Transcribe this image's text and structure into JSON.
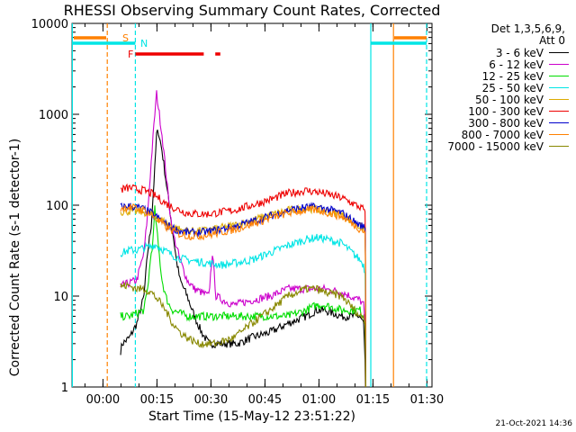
{
  "chart_data": {
    "type": "line",
    "title": "RHESSI Observing Summary Count Rates, Corrected",
    "xlabel": "Start Time (15-May-12 23:51:22)",
    "ylabel": "Corrected Count Rate (s-1 detector-1)",
    "y_scale": "log",
    "ylim": [
      1,
      10000
    ],
    "x_unit": "minutes after 23:51:22",
    "xlim": [
      0,
      100
    ],
    "x_ticks": [
      {
        "label": "00:00",
        "value": 8.6
      },
      {
        "label": "00:15",
        "value": 23.6
      },
      {
        "label": "00:30",
        "value": 38.6
      },
      {
        "label": "00:45",
        "value": 53.6
      },
      {
        "label": "01:00",
        "value": 68.6
      },
      {
        "label": "01:15",
        "value": 83.6
      },
      {
        "label": "01:30",
        "value": 98.6
      }
    ],
    "y_ticks": [
      {
        "label": "1",
        "value": 1
      },
      {
        "label": "10",
        "value": 10
      },
      {
        "label": "100",
        "value": 100
      },
      {
        "label": "1000",
        "value": 1000
      },
      {
        "label": "10000",
        "value": 10000
      }
    ],
    "legend_header": [
      "Det 1,3,5,6,9,",
      "Att 0"
    ],
    "legend_position": "right",
    "series": [
      {
        "name": "3 - 6 keV",
        "color": "#000000",
        "x": [
          13.5,
          14,
          16,
          18,
          20,
          21,
          22,
          23,
          23.5,
          24,
          25,
          26,
          27,
          28,
          29,
          30,
          32,
          34,
          36,
          38,
          40,
          43,
          46,
          50,
          55,
          60,
          65,
          68,
          70,
          75,
          80,
          81,
          81.4,
          81.6
        ],
        "y": [
          2.5,
          3,
          3.5,
          5,
          10,
          30,
          60,
          250,
          600,
          650,
          400,
          200,
          100,
          50,
          25,
          15,
          10,
          6,
          4,
          3,
          3,
          3,
          3,
          3.5,
          4,
          5,
          6,
          7,
          7,
          6,
          6,
          5,
          2,
          0
        ]
      },
      {
        "name": "6 - 12 keV",
        "color": "#cc00cc",
        "x": [
          13.5,
          14,
          16,
          18,
          20,
          21,
          22,
          23,
          23.5,
          24,
          25,
          26,
          27,
          28,
          30,
          32,
          34,
          36,
          38,
          39,
          40,
          42,
          45,
          50,
          55,
          60,
          65,
          68,
          70,
          75,
          80,
          81,
          81.4,
          81.6
        ],
        "y": [
          12,
          13,
          14,
          15,
          30,
          80,
          300,
          1000,
          1700,
          1200,
          600,
          250,
          100,
          50,
          25,
          15,
          12,
          11,
          10,
          30,
          10,
          9,
          8,
          9,
          10,
          12,
          12,
          12,
          12,
          11,
          9,
          8,
          5,
          0
        ]
      },
      {
        "name": "12 - 25 keV",
        "color": "#00dd00",
        "x": [
          13.5,
          14,
          16,
          18,
          20,
          21,
          22,
          22.5,
          23,
          24,
          25,
          26,
          27,
          28,
          30,
          32,
          35,
          40,
          45,
          50,
          55,
          60,
          65,
          68,
          70,
          75,
          80,
          81,
          81.4,
          81.6
        ],
        "y": [
          6,
          6,
          6,
          6.5,
          7,
          12,
          30,
          40,
          90,
          35,
          15,
          10,
          8,
          7,
          6.5,
          6,
          6,
          6,
          6,
          6,
          6,
          6,
          7,
          8,
          8,
          7,
          7,
          6,
          5,
          0
        ]
      },
      {
        "name": "25 - 50 keV",
        "color": "#00e5e5",
        "x": [
          13.5,
          14,
          16,
          18,
          20,
          22,
          23,
          25,
          28,
          30,
          32,
          35,
          38,
          42,
          45,
          50,
          55,
          60,
          65,
          68,
          70,
          75,
          80,
          81,
          81.4,
          81.6
        ],
        "y": [
          30,
          30,
          32,
          32,
          34,
          35,
          37,
          33,
          28,
          26,
          25,
          24,
          23,
          22,
          23,
          25,
          30,
          36,
          42,
          44,
          43,
          38,
          25,
          22,
          18,
          0
        ]
      },
      {
        "name": "50 - 100 keV",
        "color": "#ddaa00",
        "x": [
          13.5,
          14,
          16,
          18,
          20,
          22,
          24,
          26,
          28,
          30,
          32,
          35,
          38,
          40,
          45,
          50,
          55,
          60,
          65,
          68,
          70,
          75,
          80,
          81,
          81.4,
          81.6
        ],
        "y": [
          85,
          85,
          86,
          85,
          84,
          80,
          72,
          64,
          58,
          54,
          52,
          52,
          53,
          55,
          60,
          68,
          78,
          88,
          92,
          91,
          88,
          78,
          58,
          56,
          54,
          0
        ]
      },
      {
        "name": "100 - 300 keV",
        "color": "#ee0000",
        "x": [
          13.5,
          14,
          16,
          18,
          20,
          22,
          24,
          26,
          28,
          30,
          32,
          35,
          38,
          40,
          45,
          50,
          55,
          60,
          65,
          68,
          70,
          75,
          80,
          81,
          81.4,
          81.6
        ],
        "y": [
          150,
          150,
          155,
          150,
          145,
          135,
          120,
          105,
          95,
          88,
          82,
          80,
          80,
          82,
          88,
          100,
          115,
          135,
          145,
          140,
          135,
          120,
          95,
          90,
          85,
          0
        ]
      },
      {
        "name": "300 - 800 keV",
        "color": "#0000cc",
        "x": [
          13.5,
          14,
          16,
          18,
          20,
          22,
          24,
          26,
          28,
          30,
          32,
          35,
          38,
          40,
          45,
          50,
          55,
          60,
          65,
          68,
          70,
          75,
          80,
          81,
          81.4,
          81.6
        ],
        "y": [
          95,
          96,
          98,
          95,
          90,
          82,
          72,
          62,
          56,
          52,
          50,
          50,
          51,
          53,
          58,
          66,
          76,
          88,
          95,
          95,
          92,
          82,
          60,
          58,
          56,
          0
        ]
      },
      {
        "name": "800 - 7000 keV",
        "color": "#ff8000",
        "x": [
          13.5,
          14,
          16,
          18,
          20,
          22,
          24,
          26,
          28,
          30,
          32,
          35,
          38,
          40,
          45,
          50,
          55,
          60,
          65,
          68,
          70,
          75,
          80,
          81,
          81.4,
          81.6
        ],
        "y": [
          92,
          94,
          95,
          92,
          88,
          78,
          68,
          58,
          52,
          48,
          46,
          46,
          47,
          49,
          54,
          62,
          72,
          82,
          88,
          88,
          85,
          75,
          55,
          52,
          50,
          0
        ]
      },
      {
        "name": "7000 - 15000 keV",
        "color": "#888800",
        "x": [
          13.5,
          14,
          16,
          18,
          20,
          22,
          24,
          26,
          28,
          30,
          32,
          35,
          38,
          40,
          45,
          50,
          55,
          60,
          65,
          68,
          70,
          75,
          80,
          81,
          81.4,
          81.6
        ],
        "y": [
          13,
          13,
          13,
          12,
          12,
          11,
          9,
          7,
          5,
          4,
          3.5,
          3,
          3,
          3,
          3.5,
          5,
          7,
          10,
          12,
          12,
          11,
          10,
          6,
          6,
          5,
          0
        ]
      }
    ],
    "annotations": [
      {
        "label": "S",
        "color": "#ff8000",
        "spans": [
          [
            0.5,
            9.5
          ],
          [
            89.5,
            98.5
          ]
        ]
      },
      {
        "label": "N",
        "color": "#00e5e5",
        "spans": [
          [
            0,
            17.6
          ],
          [
            83,
            98.5
          ]
        ]
      },
      {
        "label": "F",
        "color": "#ee0000",
        "spans": [
          [
            17.6,
            36.6
          ],
          [
            39.8,
            41.2
          ]
        ]
      }
    ],
    "vertical_lines": [
      {
        "x": 0.1,
        "color": "#00e5e5",
        "dash": false
      },
      {
        "x": 9.8,
        "color": "#ff8000",
        "dash": true
      },
      {
        "x": 17.6,
        "color": "#00e5e5",
        "dash": true
      },
      {
        "x": 83,
        "color": "#00e5e5",
        "dash": false
      },
      {
        "x": 89.3,
        "color": "#ff8000",
        "dash": false
      },
      {
        "x": 98.5,
        "color": "#00e5e5",
        "dash": true
      }
    ]
  },
  "footer": {
    "timestamp": "21-Oct-2021 14:36"
  }
}
